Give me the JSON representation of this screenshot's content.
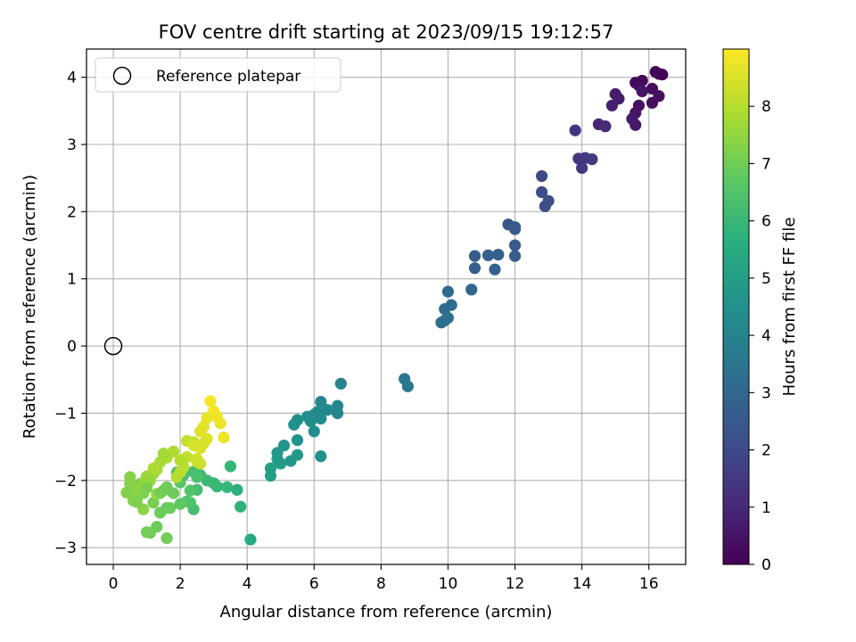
{
  "chart_data": {
    "type": "scatter",
    "title": "FOV centre drift starting at 2023/09/15 19:12:57",
    "xlabel": "Angular distance from reference (arcmin)",
    "ylabel": "Rotation from reference (arcmin)",
    "xlim": [
      -0.8,
      17.1
    ],
    "ylim": [
      -3.25,
      4.42
    ],
    "xticks": [
      0,
      2,
      4,
      6,
      8,
      10,
      12,
      14,
      16
    ],
    "yticks": [
      -3,
      -2,
      -1,
      0,
      1,
      2,
      3,
      4
    ],
    "grid": true,
    "legend": {
      "position": "top-left",
      "label": "Reference platepar"
    },
    "reference_point": {
      "x": 0,
      "y": 0
    },
    "colorbar": {
      "label": "Hours from first FF file",
      "range": [
        0,
        9
      ],
      "ticks": [
        0,
        1,
        2,
        3,
        4,
        5,
        6,
        7,
        8
      ],
      "colormap": "viridis"
    },
    "series": [
      {
        "x": [
          16.3,
          16.2,
          16.4,
          15.6,
          15.8,
          15.7,
          16.1,
          16.3,
          15.7,
          15.6,
          16.1,
          15.8,
          15.6,
          15.5,
          15.0,
          15.1,
          14.9,
          14.5,
          14.7,
          13.8,
          13.9,
          14.0,
          14.1,
          14.0,
          14.3,
          12.8,
          12.8,
          12.9,
          13.0,
          11.8,
          12.0,
          12.0,
          12.0,
          12.0,
          10.8,
          10.8,
          11.2,
          11.5,
          11.4,
          10.0,
          9.9,
          10.1,
          10.7,
          9.8,
          9.9,
          10.0,
          8.7,
          8.8,
          6.8,
          6.2,
          6.7,
          6.4,
          6.1,
          6.0,
          5.8,
          5.5,
          6.0,
          6.7,
          6.2,
          5.9,
          5.4,
          5.5,
          5.1,
          4.9,
          5.0,
          4.7,
          4.7,
          5.3,
          4.9,
          5.5,
          6.2,
          4.1,
          3.7,
          3.8,
          3.5,
          3.1,
          3.4,
          3.0,
          2.8,
          2.6,
          2.5,
          2.4,
          2.3,
          2.2,
          2.0,
          2.3,
          2.5,
          2.4,
          2.1,
          1.9,
          2.0,
          1.6,
          1.4,
          1.6,
          1.7,
          1.3,
          1.1,
          1.0,
          1.2,
          0.8,
          0.9,
          1.0,
          0.7,
          0.6,
          0.9,
          1.3,
          2.9,
          3.0,
          3.1,
          3.2,
          2.8,
          2.7,
          2.6,
          2.8,
          2.7,
          2.6,
          2.5,
          2.5,
          2.6,
          2.4,
          2.2,
          2.2,
          2.0,
          2.1,
          1.9,
          2.0,
          1.8,
          1.6,
          1.4,
          1.5,
          1.3,
          1.2,
          1.0,
          1.1,
          0.9,
          0.8,
          0.6,
          0.5,
          0.5,
          0.4,
          0.7,
          1.0,
          1.4,
          1.5,
          1.6,
          1.8,
          3.3,
          2.4,
          1.2
        ],
        "y": [
          4.05,
          4.08,
          4.04,
          3.92,
          3.95,
          3.88,
          3.83,
          3.72,
          3.58,
          3.47,
          3.62,
          3.79,
          3.29,
          3.38,
          3.75,
          3.68,
          3.58,
          3.3,
          3.27,
          3.21,
          2.79,
          2.78,
          2.8,
          2.65,
          2.78,
          2.53,
          2.29,
          2.08,
          2.16,
          1.81,
          1.74,
          1.5,
          1.34,
          1.77,
          1.34,
          1.16,
          1.35,
          1.36,
          1.14,
          0.81,
          0.55,
          0.61,
          0.84,
          0.35,
          0.38,
          0.42,
          -0.49,
          -0.6,
          -0.56,
          -0.83,
          -0.89,
          -0.95,
          -0.98,
          -1.02,
          -1.05,
          -1.1,
          -1.27,
          -1.0,
          -1.08,
          -1.12,
          -1.17,
          -1.4,
          -1.48,
          -1.59,
          -1.75,
          -1.82,
          -1.93,
          -1.71,
          -1.68,
          -1.62,
          -1.64,
          -2.88,
          -2.14,
          -2.39,
          -1.79,
          -2.09,
          -2.1,
          -2.04,
          -2.0,
          -1.92,
          -2.14,
          -2.43,
          -2.33,
          -2.31,
          -2.03,
          -2.15,
          -1.95,
          -1.87,
          -1.92,
          -1.88,
          -2.35,
          -2.41,
          -2.48,
          -2.86,
          -2.41,
          -2.69,
          -2.78,
          -2.77,
          -2.33,
          -2.05,
          -2.19,
          -2.08,
          -2.26,
          -2.3,
          -2.43,
          -2.2,
          -0.82,
          -0.97,
          -1.05,
          -1.15,
          -1.07,
          -1.2,
          -1.27,
          -1.38,
          -1.45,
          -1.52,
          -1.68,
          -1.72,
          -1.75,
          -1.43,
          -1.41,
          -1.65,
          -1.88,
          -1.8,
          -1.95,
          -1.7,
          -1.57,
          -1.66,
          -1.73,
          -1.6,
          -1.84,
          -1.9,
          -1.94,
          -2.0,
          -2.03,
          -2.09,
          -2.13,
          -2.05,
          -1.95,
          -2.18,
          -2.32,
          -2.11,
          -2.19,
          -2.15,
          -2.1,
          -2.19,
          -1.36,
          -1.48,
          -1.82
        ],
        "hours": [
          0.0,
          0.05,
          0.1,
          0.15,
          0.2,
          0.25,
          0.3,
          0.35,
          0.4,
          0.45,
          0.35,
          0.5,
          0.6,
          0.65,
          0.7,
          0.75,
          0.8,
          1.0,
          1.05,
          1.3,
          1.35,
          1.4,
          1.45,
          1.5,
          1.55,
          2.0,
          2.05,
          2.1,
          2.15,
          2.4,
          2.45,
          2.5,
          2.55,
          2.5,
          2.6,
          2.65,
          2.7,
          2.75,
          2.8,
          3.1,
          3.15,
          3.2,
          3.0,
          3.25,
          3.3,
          3.35,
          3.5,
          3.55,
          4.0,
          4.1,
          4.15,
          4.2,
          4.25,
          4.3,
          4.35,
          4.4,
          4.45,
          4.1,
          4.3,
          4.4,
          4.5,
          4.6,
          4.7,
          4.8,
          4.9,
          5.0,
          5.05,
          4.75,
          4.85,
          4.9,
          4.5,
          5.5,
          5.7,
          5.8,
          5.9,
          5.95,
          5.9,
          6.0,
          6.05,
          6.1,
          6.2,
          6.3,
          6.4,
          6.5,
          6.6,
          6.5,
          6.4,
          6.3,
          6.35,
          6.45,
          6.7,
          6.8,
          6.9,
          7.0,
          6.9,
          6.95,
          7.0,
          7.05,
          7.1,
          7.15,
          7.2,
          7.25,
          7.3,
          7.35,
          7.4,
          7.5,
          8.9,
          8.85,
          8.8,
          8.75,
          8.7,
          8.65,
          8.6,
          8.55,
          8.5,
          8.45,
          8.4,
          8.35,
          8.3,
          8.25,
          8.2,
          8.15,
          8.1,
          8.05,
          8.0,
          7.95,
          7.9,
          7.85,
          7.8,
          7.75,
          7.7,
          7.65,
          7.6,
          7.55,
          7.5,
          7.45,
          7.4,
          7.35,
          7.3,
          7.25,
          7.2,
          7.15,
          7.1,
          7.05,
          7.0,
          6.95,
          8.8,
          8.5,
          7.9
        ]
      }
    ]
  }
}
